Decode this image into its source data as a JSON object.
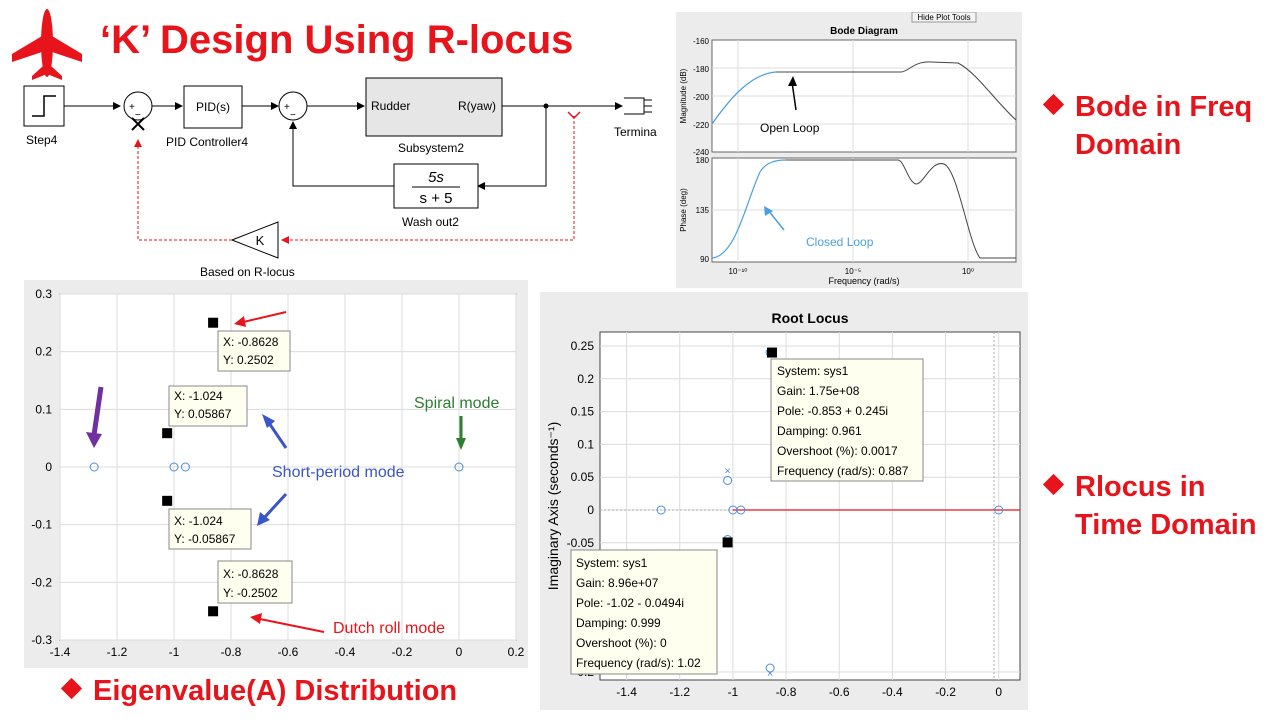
{
  "title": "‘K’ Design Using R-locus",
  "headings": {
    "bode": [
      "Bode in Freq",
      "Domain"
    ],
    "rlocus": [
      "Rlocus in",
      "Time Domain"
    ],
    "eigen": "Eigenvalue(A) Distribution"
  },
  "simulink": {
    "step": "Step4",
    "pid_block": "PID(s)",
    "pid_label": "PID Controller4",
    "rudder_in": "Rudder",
    "yaw_out": "R(yaw)",
    "subsystem_label": "Subsystem2",
    "washout_num": "5s",
    "washout_den": "s + 5",
    "washout_label": "Wash out2",
    "gain_block": "K",
    "gain_label": "Based on R-locus",
    "terminator_label": "Termina",
    "sum_signs_1": [
      "+",
      "−"
    ],
    "sum_signs_2": [
      "+",
      "−"
    ]
  },
  "bode": {
    "hide_tools": "Hide Plot Tools",
    "title": "Bode Diagram",
    "mag_ylabel": "Magnitude (dB)",
    "phase_ylabel": "Phase (deg)",
    "xlabel": "Frequency  (rad/s)",
    "mag_ticks": [
      "-160",
      "-180",
      "-200",
      "-220",
      "-240"
    ],
    "phase_ticks": [
      "180",
      "135",
      "90"
    ],
    "x_ticks": [
      "10⁻¹⁰",
      "10⁻⁵",
      "10⁰"
    ],
    "open_loop": "Open Loop",
    "closed_loop": "Closed Loop",
    "colors": {
      "closed": "#4a9fe0",
      "open": "#333333"
    }
  },
  "eigen_plot": {
    "x_ticks": [
      "-1.4",
      "-1.2",
      "-1",
      "-0.8",
      "-0.6",
      "-0.4",
      "-0.2",
      "0",
      "0.2"
    ],
    "y_ticks": [
      "0.3",
      "0.2",
      "0.1",
      "0",
      "-0.1",
      "-0.2",
      "-0.3"
    ],
    "tips": [
      {
        "x": "X: -0.8628",
        "y": "Y: 0.2502"
      },
      {
        "x": "X: -1.024",
        "y": "Y: 0.05867"
      },
      {
        "x": "X: -1.024",
        "y": "Y: -0.05867"
      },
      {
        "x": "X: -0.8628",
        "y": "Y: -0.2502"
      }
    ],
    "spiral": "Spiral mode",
    "short_period": "Short-period mode",
    "dutch_roll": "Dutch roll mode"
  },
  "rlocus_plot": {
    "title": "Root Locus",
    "ylabel": "Imaginary Axis (seconds⁻¹)",
    "x_ticks": [
      "-1.4",
      "-1.2",
      "-1",
      "-0.8",
      "-0.6",
      "-0.4",
      "-0.2",
      "0"
    ],
    "y_ticks": [
      "0.25",
      "0.2",
      "0.15",
      "0.1",
      "0.05",
      "0",
      "-0.05",
      "-0.2"
    ],
    "tip1": [
      "System: sys1",
      "Gain: 1.75e+08",
      "Pole: -0.853 + 0.245i",
      "Damping: 0.961",
      "Overshoot (%): 0.0017",
      "Frequency (rad/s): 0.887"
    ],
    "tip2": [
      "System: sys1",
      "Gain: 8.96e+07",
      "Pole: -1.02 - 0.0494i",
      "Damping: 0.999",
      "Overshoot (%): 0",
      "Frequency (rad/s): 1.02"
    ]
  },
  "chart_data": [
    {
      "type": "scatter",
      "name": "eigenvalues",
      "xlim": [
        -1.4,
        0.2
      ],
      "ylim": [
        -0.3,
        0.3
      ],
      "grid": true,
      "points": [
        {
          "x": -1.28,
          "y": 0,
          "kind": "open"
        },
        {
          "x": -1.0,
          "y": 0,
          "kind": "open"
        },
        {
          "x": -0.96,
          "y": 0,
          "kind": "open"
        },
        {
          "x": 0.0,
          "y": 0,
          "kind": "open"
        },
        {
          "x": -0.8628,
          "y": 0.2502,
          "kind": "filled"
        },
        {
          "x": -1.024,
          "y": 0.05867,
          "kind": "filled"
        },
        {
          "x": -1.024,
          "y": -0.05867,
          "kind": "filled"
        },
        {
          "x": -0.8628,
          "y": -0.2502,
          "kind": "filled"
        }
      ]
    },
    {
      "type": "scatter",
      "name": "root locus",
      "xlim": [
        -1.5,
        0.08
      ],
      "ylim": [
        -0.27,
        0.27
      ],
      "grid": true,
      "points": [
        {
          "x": -1.27,
          "y": 0,
          "kind": "open"
        },
        {
          "x": -1.02,
          "y": 0.045,
          "kind": "open"
        },
        {
          "x": -1.02,
          "y": -0.045,
          "kind": "open"
        },
        {
          "x": -1.0,
          "y": 0,
          "kind": "open"
        },
        {
          "x": -0.97,
          "y": 0,
          "kind": "open"
        },
        {
          "x": -0.86,
          "y": 0.24,
          "kind": "open"
        },
        {
          "x": -0.86,
          "y": -0.24,
          "kind": "open"
        },
        {
          "x": 0.0,
          "y": 0,
          "kind": "open"
        },
        {
          "x": -0.853,
          "y": 0.245,
          "kind": "filled"
        },
        {
          "x": -1.02,
          "y": -0.0494,
          "kind": "filled"
        }
      ],
      "locus_segment": {
        "x": [
          -1.0,
          0.08
        ],
        "y": [
          0,
          0
        ]
      }
    }
  ]
}
